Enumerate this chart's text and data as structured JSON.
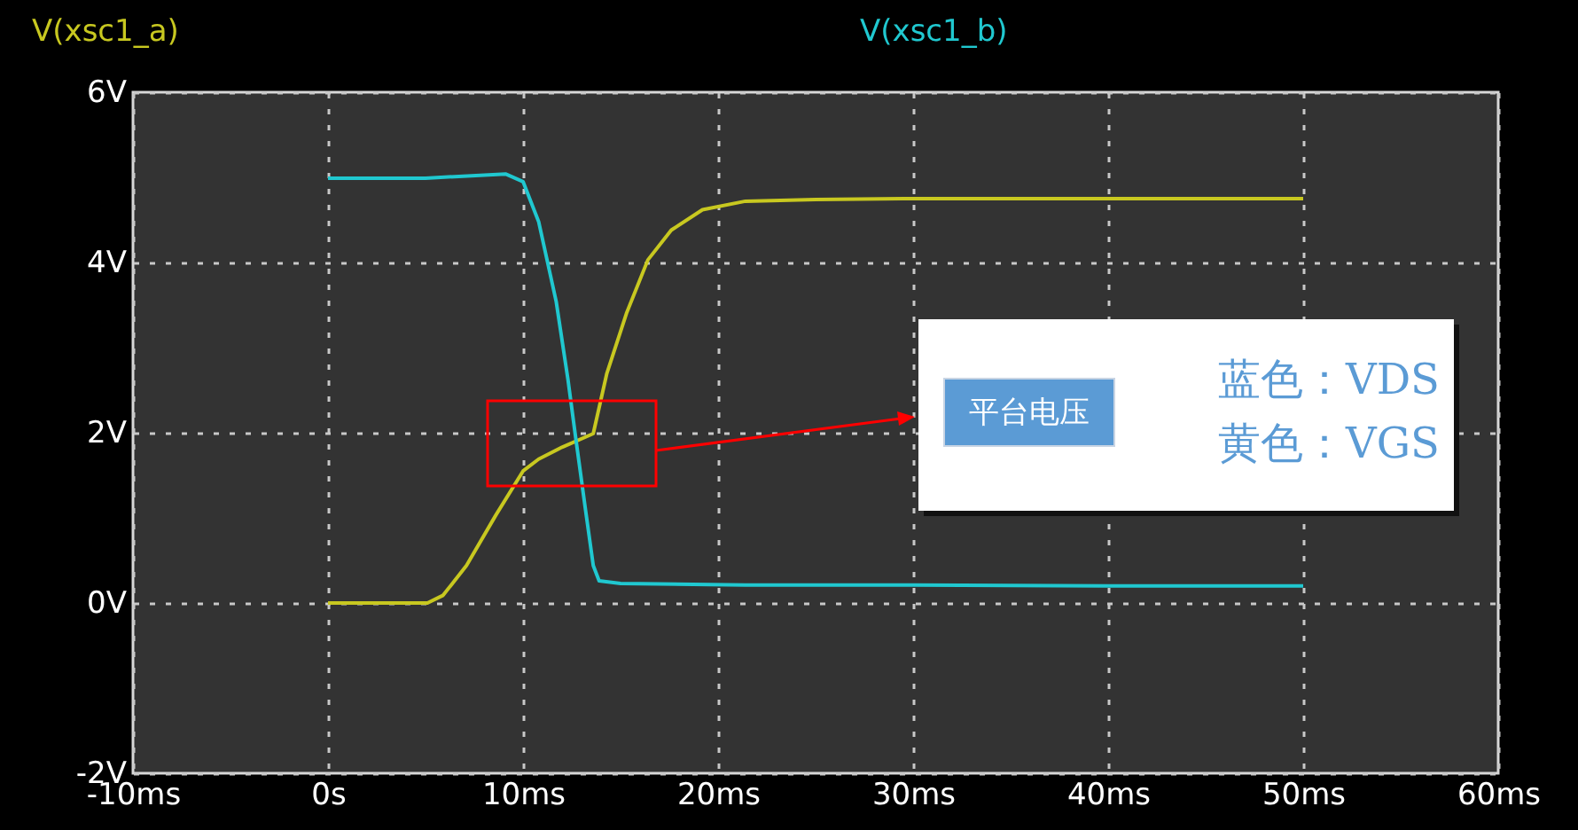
{
  "chart_data": {
    "type": "line",
    "legend": "top",
    "grid": true,
    "line_style": "solid",
    "marker": "none",
    "xlim": [
      -10,
      60
    ],
    "xticks": [
      {
        "value": -10,
        "label": "-10ms"
      },
      {
        "value": 0,
        "label": "0s"
      },
      {
        "value": 10,
        "label": "10ms"
      },
      {
        "value": 20,
        "label": "20ms"
      },
      {
        "value": 30,
        "label": "30ms"
      },
      {
        "value": 40,
        "label": "40ms"
      },
      {
        "value": 50,
        "label": "50ms"
      },
      {
        "value": 60,
        "label": "60ms"
      }
    ],
    "ylim": [
      -2,
      6
    ],
    "yticks": [
      {
        "value": -2,
        "label": "-2V"
      },
      {
        "value": 0,
        "label": "0V"
      },
      {
        "value": 2,
        "label": "2V"
      },
      {
        "value": 4,
        "label": "4V"
      },
      {
        "value": 6,
        "label": "6V"
      }
    ],
    "series": [
      {
        "name": "V(xsc1_a)",
        "color": "#c8c820",
        "x": [
          0,
          5.1,
          5.9,
          7.1,
          8.6,
          10,
          10.8,
          12,
          13.6,
          14.3,
          15.3,
          16.4,
          17.6,
          19.2,
          21.4,
          25,
          30,
          40,
          50
        ],
        "values": [
          0,
          0,
          0.09,
          0.44,
          1.03,
          1.55,
          1.69,
          1.83,
          1.99,
          2.7,
          3.4,
          4.03,
          4.38,
          4.62,
          4.72,
          4.74,
          4.75,
          4.75,
          4.75
        ]
      },
      {
        "name": "V(xsc1_b)",
        "color": "#20c8d0",
        "x": [
          0,
          5,
          9.1,
          10,
          10.8,
          11.7,
          12.3,
          12.7,
          13.2,
          13.6,
          13.9,
          15,
          21.4,
          30,
          40,
          50
        ],
        "values": [
          4.99,
          4.99,
          5.04,
          4.95,
          4.48,
          3.54,
          2.63,
          1.94,
          1.1,
          0.44,
          0.26,
          0.23,
          0.21,
          0.21,
          0.2,
          0.2
        ]
      }
    ],
    "annotations": [
      "平台电压",
      "蓝色：VDS",
      "黄色：VGS"
    ]
  }
}
